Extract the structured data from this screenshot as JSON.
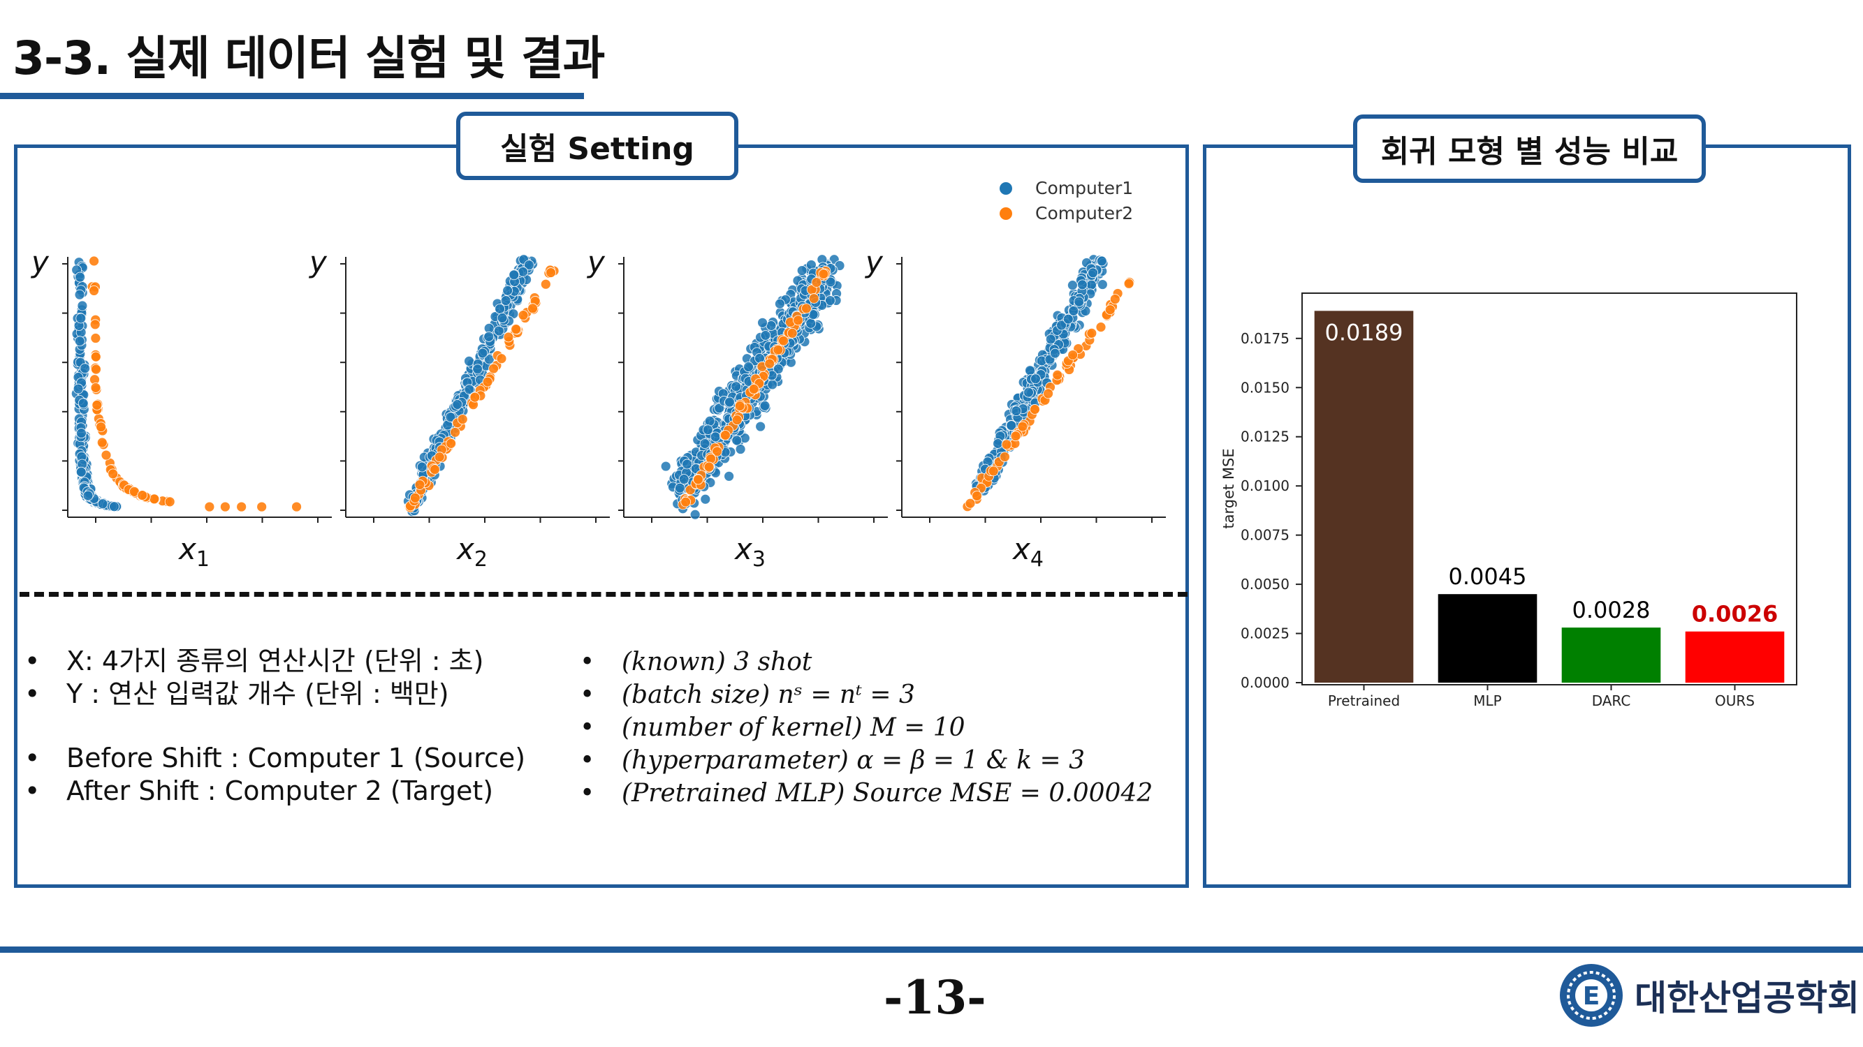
{
  "slide": {
    "title": "3-3. 실제 데이터 실험 및 결과",
    "page_number": "-13-"
  },
  "left_tab": {
    "label": "실험 Setting"
  },
  "right_tab": {
    "label": "회귀 모형 별 성능 비교"
  },
  "scatter_legend": [
    {
      "name": "Computer1",
      "color": "#1f77b4"
    },
    {
      "name": "Computer2",
      "color": "#ff7f0e"
    }
  ],
  "scatter_panels": [
    {
      "ylabel": "y",
      "xlabel": "x",
      "subscript": "1"
    },
    {
      "ylabel": "y",
      "xlabel": "x",
      "subscript": "2"
    },
    {
      "ylabel": "y",
      "xlabel": "x",
      "subscript": "3"
    },
    {
      "ylabel": "y",
      "xlabel": "x",
      "subscript": "4"
    }
  ],
  "settings": {
    "line1": "X: 4가지 종류의 연산시간 (단위 : 초)",
    "line2": "Y : 연산 입력값 개수 (단위 : 백만)",
    "line3": "Before Shift : Computer 1 (Source)",
    "line4": "After Shift : Computer 2 (Target)"
  },
  "params": {
    "line1": "(known) 3 shot",
    "line2": "(batch size) nˢ = nᵗ = 3",
    "line3": "(number of kernel) M = 10",
    "line4": "(hyperparameter) α = β = 1  &  k = 3",
    "line5": "(Pretrained MLP) Source MSE = 0.00042"
  },
  "chart_data": {
    "type": "bar",
    "categories": [
      "Pretrained",
      "MLP",
      "DARC",
      "OURS"
    ],
    "values": [
      0.0189,
      0.0045,
      0.0028,
      0.0026
    ],
    "value_labels": [
      "0.0189",
      "0.0045",
      "0.0028",
      "0.0026"
    ],
    "colors": [
      "#553322",
      "#000000",
      "#008000",
      "#ff0000"
    ],
    "label_colors": [
      "#ffffff",
      "#000000",
      "#000000",
      "#cc0000"
    ],
    "ylabel": "target MSE",
    "xlabel": "",
    "ylim": [
      0,
      0.0198
    ],
    "yticks": [
      "0.0000",
      "0.0025",
      "0.0050",
      "0.0075",
      "0.0100",
      "0.0125",
      "0.0150",
      "0.0175"
    ],
    "grid": false
  },
  "logo": {
    "text": "대한산업공학회",
    "emblem_letter": "E"
  }
}
